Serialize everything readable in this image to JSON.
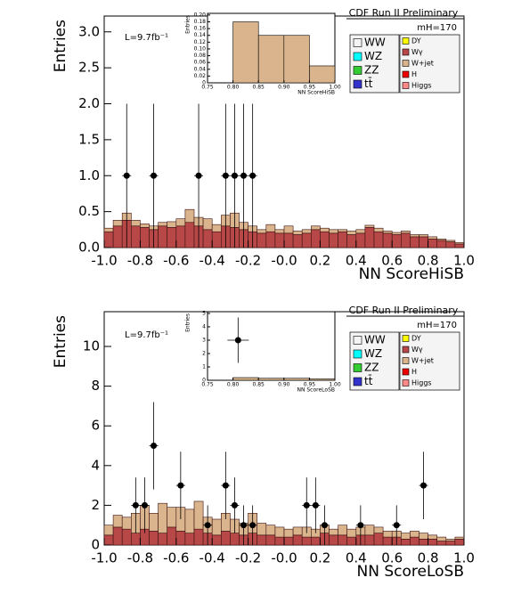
{
  "chart_data": [
    {
      "type": "histogram",
      "title": "CDF Run II Preliminary",
      "annotations": [
        "mH=170",
        "L=9.7fb⁻¹"
      ],
      "x_label": "NN ScoreHiSB",
      "y_label": "Entries",
      "xlim": [
        -1,
        1
      ],
      "ylim": [
        0,
        3.22
      ],
      "xticks": [
        {
          "value": -1,
          "label": "-1.0"
        },
        -0.8,
        -0.6,
        -0.4,
        -0.2,
        {
          "value": 0,
          "label": "-0.0"
        },
        0.2,
        0.4,
        0.6,
        0.8,
        {
          "value": 1,
          "label": "1.0"
        }
      ],
      "yticks": [
        {
          "value": 0,
          "label": "0.0"
        },
        0.5,
        {
          "value": 1,
          "label": "1.0"
        },
        1.5,
        {
          "value": 2,
          "label": "2.0"
        },
        2.5,
        {
          "value": 3,
          "label": "3.0"
        }
      ],
      "bins": [
        -1,
        -0.95,
        -0.9,
        -0.85,
        -0.8,
        -0.75,
        -0.7,
        -0.65,
        -0.6,
        -0.55,
        -0.5,
        -0.45,
        -0.4,
        -0.35,
        -0.3,
        -0.25,
        -0.2,
        -0.15,
        -0.1,
        -0.05,
        0,
        0.05,
        0.1,
        0.15,
        0.2,
        0.25,
        0.3,
        0.35,
        0.4,
        0.45,
        0.5,
        0.55,
        0.6,
        0.65,
        0.7,
        0.75,
        0.8,
        0.85,
        0.9,
        0.95,
        1
      ],
      "series": [
        {
          "name": "WW",
          "color": "#f4f4f4"
        },
        {
          "name": "WZ",
          "color": "#00ffff"
        },
        {
          "name": "ZZ",
          "color": "#33cc33"
        },
        {
          "name": "tt̄",
          "color": "#3333cc"
        },
        {
          "name": "DY",
          "color": "#ffff00"
        },
        {
          "name": "Wγ",
          "color": "#b84848",
          "values": [
            0.22,
            0.3,
            0.38,
            0.3,
            0.28,
            0.25,
            0.3,
            0.28,
            0.3,
            0.35,
            0.3,
            0.25,
            0.22,
            0.3,
            0.28,
            0.25,
            0.22,
            0.2,
            0.22,
            0.2,
            0.2,
            0.18,
            0.2,
            0.25,
            0.22,
            0.2,
            0.22,
            0.18,
            0.2,
            0.28,
            0.22,
            0.2,
            0.18,
            0.2,
            0.15,
            0.15,
            0.12,
            0.1,
            0.08,
            0.05
          ]
        },
        {
          "name": "W+jet",
          "color": "#d9b48c",
          "values": [
            0.05,
            0.08,
            0.1,
            0.08,
            0.05,
            0.05,
            0.05,
            0.08,
            0.1,
            0.18,
            0.12,
            0.15,
            0.1,
            0.15,
            0.2,
            0.1,
            0.08,
            0.05,
            0.1,
            0.05,
            0.1,
            0.05,
            0.05,
            0.05,
            0.05,
            0.05,
            0.03,
            0.05,
            0.05,
            0.03,
            0.05,
            0.03,
            0.03,
            0.03,
            0.03,
            0.03,
            0.03,
            0.02,
            0.02,
            0.02
          ]
        },
        {
          "name": "H",
          "color": "#ee0000"
        },
        {
          "name": "Higgs",
          "color": "#ff8888"
        }
      ],
      "points": {
        "x": [
          -0.875,
          -0.725,
          -0.475,
          -0.325,
          -0.275,
          -0.225,
          -0.175
        ],
        "y": [
          1,
          1,
          1,
          1,
          1,
          1,
          1
        ],
        "errors": [
          1,
          1,
          1,
          1,
          1,
          1,
          1
        ]
      }
    },
    {
      "type": "histogram",
      "x_label": "NN ScoreHiSB",
      "y_label": "Entries",
      "color": "#d9b48c",
      "xlim": [
        0.75,
        1
      ],
      "ylim": [
        0,
        0.205
      ],
      "xticks": [
        {
          "value": 0.75,
          "label": "0.75"
        },
        {
          "value": 0.8,
          "label": "0.80"
        },
        {
          "value": 0.85,
          "label": "0.85"
        },
        {
          "value": 0.9,
          "label": "0.90"
        },
        {
          "value": 0.95,
          "label": "0.95"
        },
        {
          "value": 1,
          "label": "1.00"
        }
      ],
      "yticks": [
        0,
        0.02,
        0.04,
        0.06,
        0.08,
        {
          "value": 0.1,
          "label": "0.10"
        },
        0.12,
        0.14,
        0.16,
        0.18,
        {
          "value": 0.2,
          "label": "0.20"
        }
      ],
      "bins": [
        0.8,
        0.85,
        0.9,
        0.95,
        1
      ],
      "values": [
        0.18,
        0.14,
        0.14,
        0.05
      ]
    },
    {
      "type": "histogram",
      "title": "CDF Run II Preliminary",
      "annotations": [
        "mH=170",
        "L=9.7fb⁻¹"
      ],
      "x_label": "NN ScoreLoSB",
      "y_label": "Entries",
      "xlim": [
        -1,
        1
      ],
      "ylim": [
        0,
        11.75
      ],
      "xticks": [
        {
          "value": -1,
          "label": "-1.0"
        },
        -0.8,
        -0.6,
        -0.4,
        -0.2,
        {
          "value": 0,
          "label": "-0.0"
        },
        0.2,
        0.4,
        0.6,
        0.8,
        {
          "value": 1,
          "label": "1.0"
        }
      ],
      "yticks": [
        0,
        2,
        4,
        6,
        8,
        10
      ],
      "bins": [
        -1,
        -0.95,
        -0.9,
        -0.85,
        -0.8,
        -0.75,
        -0.7,
        -0.65,
        -0.6,
        -0.55,
        -0.5,
        -0.45,
        -0.4,
        -0.35,
        -0.3,
        -0.25,
        -0.2,
        -0.15,
        -0.1,
        -0.05,
        0,
        0.05,
        0.1,
        0.15,
        0.2,
        0.25,
        0.3,
        0.35,
        0.4,
        0.45,
        0.5,
        0.55,
        0.6,
        0.65,
        0.7,
        0.75,
        0.8,
        0.85,
        0.9,
        0.95,
        1
      ],
      "series": [
        {
          "name": "WW",
          "color": "#f4f4f4"
        },
        {
          "name": "WZ",
          "color": "#00ffff"
        },
        {
          "name": "ZZ",
          "color": "#33cc33"
        },
        {
          "name": "tt̄",
          "color": "#3333cc"
        },
        {
          "name": "DY",
          "color": "#ffff00"
        },
        {
          "name": "Wγ",
          "color": "#b84848",
          "values": [
            0.5,
            0.9,
            0.8,
            0.6,
            0.8,
            0.7,
            0.6,
            0.9,
            0.7,
            0.6,
            0.8,
            0.6,
            0.5,
            0.7,
            0.6,
            0.5,
            0.6,
            0.5,
            0.5,
            0.4,
            0.4,
            0.5,
            0.4,
            0.4,
            0.6,
            0.5,
            0.5,
            0.4,
            0.5,
            0.5,
            0.6,
            0.4,
            0.4,
            0.3,
            0.4,
            0.3,
            0.3,
            0.2,
            0.2,
            0.3
          ]
        },
        {
          "name": "W+jet",
          "color": "#d9b48c",
          "values": [
            0.5,
            0.6,
            0.6,
            1.0,
            1.2,
            0.9,
            1.5,
            1.0,
            1.2,
            1.2,
            1.4,
            0.8,
            0.8,
            0.9,
            0.7,
            0.6,
            1.0,
            0.6,
            0.5,
            0.5,
            0.4,
            0.4,
            0.5,
            0.4,
            0.4,
            0.3,
            0.5,
            0.4,
            0.4,
            0.5,
            0.3,
            0.3,
            0.3,
            0.3,
            0.3,
            0.3,
            0.2,
            0.2,
            0.1,
            0.1
          ]
        },
        {
          "name": "H",
          "color": "#ee0000"
        },
        {
          "name": "Higgs",
          "color": "#ff8888"
        }
      ],
      "points": {
        "x": [
          -0.825,
          -0.775,
          -0.725,
          -0.575,
          -0.425,
          -0.325,
          -0.275,
          -0.225,
          -0.175,
          0.125,
          0.175,
          0.225,
          0.425,
          0.625,
          0.775
        ],
        "y": [
          2,
          2,
          5,
          3,
          1,
          3,
          2,
          1,
          1,
          2,
          2,
          1,
          1,
          1,
          3
        ],
        "errors": [
          1.4,
          1.4,
          2.2,
          1.7,
          1,
          1.7,
          1.4,
          1,
          1,
          1.4,
          1.4,
          1,
          1,
          1,
          1.7
        ]
      }
    },
    {
      "type": "histogram",
      "x_label": "NN ScoreLoSB",
      "y_label": "Entries",
      "color": "#d9b48c",
      "xlim": [
        0.75,
        1
      ],
      "ylim": [
        0,
        5.13
      ],
      "xticks": [
        {
          "value": 0.75,
          "label": "0.75"
        },
        {
          "value": 0.8,
          "label": "0.80"
        },
        {
          "value": 0.85,
          "label": "0.85"
        },
        {
          "value": 0.9,
          "label": "0.90"
        },
        {
          "value": 0.95,
          "label": "0.95"
        },
        {
          "value": 1,
          "label": "1.00"
        }
      ],
      "yticks": [
        0,
        1,
        2,
        3,
        4,
        5
      ],
      "bins": [
        0.8,
        0.85,
        0.9,
        0.95,
        1
      ],
      "values": [
        0.2,
        0.15,
        0.15,
        0.1
      ],
      "points": {
        "x": [
          0.81
        ],
        "y": [
          3
        ],
        "errors": [
          1.7
        ]
      }
    }
  ]
}
